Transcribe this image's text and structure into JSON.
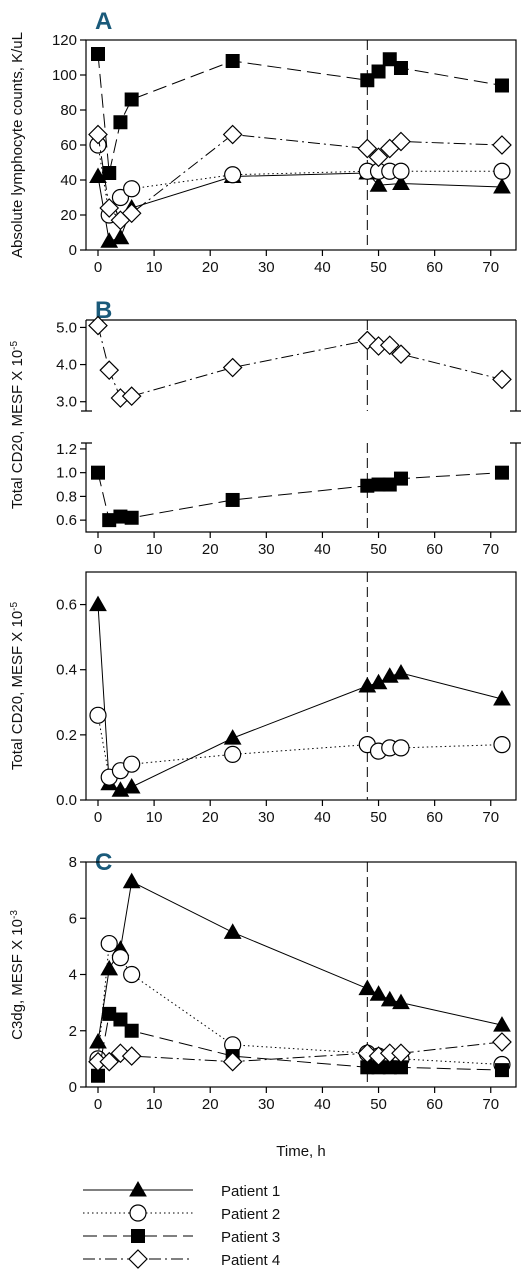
{
  "figure": {
    "xlabel": "Time, h",
    "panel_labels": [
      "A",
      "B",
      "C"
    ]
  },
  "legend": [
    {
      "name": "Patient 1"
    },
    {
      "name": "Patient 2"
    },
    {
      "name": "Patient 3"
    },
    {
      "name": "Patient 4"
    }
  ],
  "chart_data": [
    {
      "type": "line",
      "panel": "A",
      "ylabel": "Absolute lymphocyte counts, K/uL",
      "xlim": [
        0,
        72
      ],
      "ylim": [
        0,
        120
      ],
      "xticks": [
        "0",
        "10",
        "20",
        "30",
        "40",
        "50",
        "60",
        "70"
      ],
      "yticks": [
        "0",
        "20",
        "40",
        "60",
        "80",
        "100",
        "120"
      ],
      "marker_line_x": 48,
      "series": [
        {
          "name": "Patient 1",
          "marker": "triangle-filled",
          "line": "solid",
          "x": [
            0,
            2,
            4,
            6,
            24,
            48,
            50,
            54,
            72
          ],
          "y": [
            42,
            5,
            7,
            24,
            42,
            44,
            37,
            38,
            36
          ]
        },
        {
          "name": "Patient 2",
          "marker": "circle-open",
          "line": "dotted",
          "x": [
            0,
            2,
            4,
            6,
            24,
            48,
            50,
            52,
            54,
            72
          ],
          "y": [
            60,
            20,
            30,
            35,
            43,
            45,
            45,
            45,
            45,
            45
          ]
        },
        {
          "name": "Patient 3",
          "marker": "square-filled",
          "line": "dashed",
          "x": [
            0,
            2,
            4,
            6,
            24,
            48,
            50,
            52,
            54,
            72
          ],
          "y": [
            112,
            44,
            73,
            86,
            108,
            97,
            102,
            109,
            104,
            94
          ]
        },
        {
          "name": "Patient 4",
          "marker": "diamond-open",
          "line": "dashdot",
          "x": [
            0,
            2,
            4,
            6,
            24,
            48,
            50,
            52,
            54,
            72
          ],
          "y": [
            66,
            24,
            17,
            21,
            66,
            58,
            53,
            58,
            62,
            60
          ]
        }
      ]
    },
    {
      "type": "line",
      "panel": "B-top",
      "ylabel": "Total CD20, MESF X 10-5",
      "ylim": [
        2.75,
        5.2
      ],
      "yticks": [
        "3.0",
        "4.0",
        "5.0"
      ],
      "marker_line_x": 48,
      "series": [
        {
          "name": "Patient 4",
          "marker": "diamond-open",
          "line": "dashdot",
          "x": [
            0,
            2,
            4,
            6,
            24,
            48,
            50,
            52,
            54,
            72
          ],
          "y": [
            5.05,
            3.85,
            3.1,
            3.15,
            3.92,
            4.65,
            4.5,
            4.52,
            4.28,
            3.6
          ]
        }
      ]
    },
    {
      "type": "line",
      "panel": "B-bottom",
      "xlim": [
        0,
        72
      ],
      "ylim": [
        0.5,
        1.25
      ],
      "xticks": [
        "0",
        "10",
        "20",
        "30",
        "40",
        "50",
        "60",
        "70"
      ],
      "yticks": [
        "0.6",
        "0.8",
        "1.0",
        "1.2"
      ],
      "marker_line_x": 48,
      "series": [
        {
          "name": "Patient 3",
          "marker": "square-filled",
          "line": "dashed",
          "x": [
            0,
            2,
            4,
            6,
            24,
            48,
            50,
            52,
            54,
            72
          ],
          "y": [
            1.0,
            0.6,
            0.63,
            0.62,
            0.77,
            0.89,
            0.9,
            0.9,
            0.95,
            1.0
          ]
        }
      ]
    },
    {
      "type": "line",
      "panel": "B-lower",
      "ylabel": "Total CD20, MESF X 10-5",
      "xlim": [
        0,
        72
      ],
      "ylim": [
        0,
        0.7
      ],
      "xticks": [
        "0",
        "10",
        "20",
        "30",
        "40",
        "50",
        "60",
        "70"
      ],
      "yticks": [
        "0.0",
        "0.2",
        "0.4",
        "0.6"
      ],
      "marker_line_x": 48,
      "series": [
        {
          "name": "Patient 1",
          "marker": "triangle-filled",
          "line": "solid",
          "x": [
            0,
            2,
            4,
            6,
            24,
            48,
            50,
            52,
            54,
            72
          ],
          "y": [
            0.6,
            0.05,
            0.03,
            0.04,
            0.19,
            0.35,
            0.36,
            0.38,
            0.39,
            0.31
          ]
        },
        {
          "name": "Patient 2",
          "marker": "circle-open",
          "line": "dotted",
          "x": [
            0,
            2,
            4,
            6,
            24,
            48,
            50,
            52,
            54,
            72
          ],
          "y": [
            0.26,
            0.07,
            0.09,
            0.11,
            0.14,
            0.17,
            0.15,
            0.16,
            0.16,
            0.17
          ]
        }
      ]
    },
    {
      "type": "line",
      "panel": "C",
      "ylabel": "C3dg, MESF X 10-3",
      "xlim": [
        0,
        72
      ],
      "ylim": [
        0,
        8
      ],
      "xticks": [
        "0",
        "10",
        "20",
        "30",
        "40",
        "50",
        "60",
        "70"
      ],
      "yticks": [
        "0",
        "2",
        "4",
        "6",
        "8"
      ],
      "marker_line_x": 48,
      "series": [
        {
          "name": "Patient 1",
          "marker": "triangle-filled",
          "line": "solid",
          "x": [
            0,
            2,
            4,
            6,
            24,
            48,
            50,
            52,
            54,
            72
          ],
          "y": [
            1.6,
            4.2,
            4.9,
            7.3,
            5.5,
            3.5,
            3.3,
            3.1,
            3.0,
            2.2
          ]
        },
        {
          "name": "Patient 2",
          "marker": "circle-open",
          "line": "dotted",
          "x": [
            0,
            2,
            4,
            6,
            24,
            48,
            50,
            52,
            54,
            72
          ],
          "y": [
            1.0,
            5.1,
            4.6,
            4.0,
            1.5,
            1.2,
            1.1,
            1.0,
            1.0,
            0.8
          ]
        },
        {
          "name": "Patient 3",
          "marker": "square-filled",
          "line": "dashed",
          "x": [
            0,
            2,
            4,
            6,
            24,
            48,
            50,
            52,
            54,
            72
          ],
          "y": [
            0.4,
            2.6,
            2.4,
            2.0,
            1.1,
            0.7,
            0.7,
            0.7,
            0.7,
            0.6
          ]
        },
        {
          "name": "Patient 4",
          "marker": "diamond-open",
          "line": "dashdot",
          "x": [
            0,
            2,
            4,
            6,
            24,
            48,
            50,
            52,
            54,
            72
          ],
          "y": [
            0.9,
            0.9,
            1.2,
            1.1,
            0.9,
            1.2,
            1.1,
            1.2,
            1.2,
            1.6
          ]
        }
      ]
    }
  ]
}
